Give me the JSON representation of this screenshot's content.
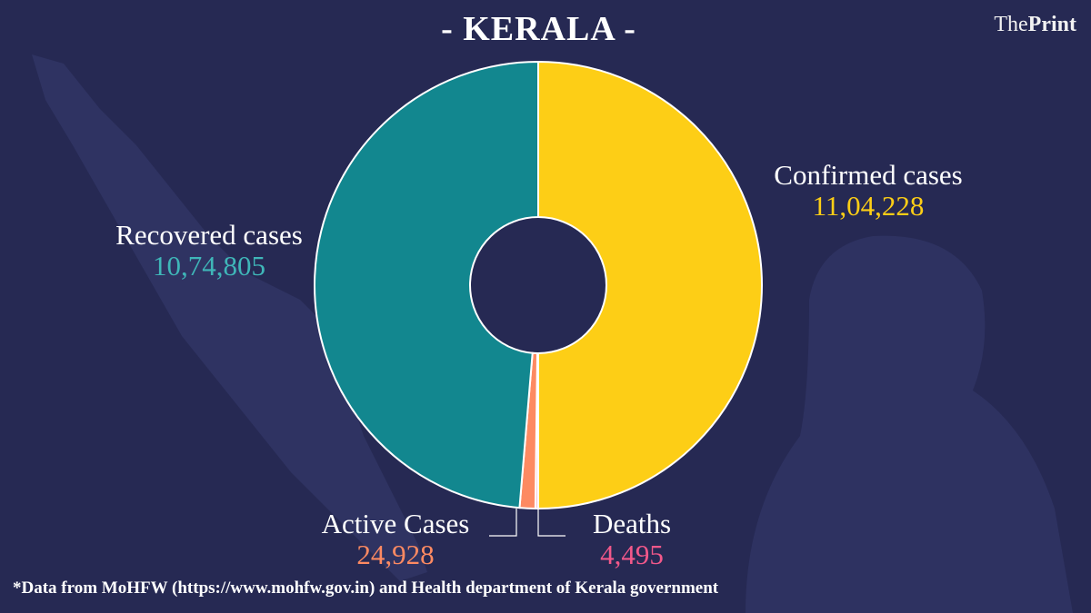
{
  "title": "- KERALA -",
  "logo": {
    "prefix": "The",
    "bold": "Print"
  },
  "footer": "*Data from MoHFW (https://www.mohfw.gov.in) and Health department of Kerala government",
  "chart_data": {
    "type": "pie",
    "donut": true,
    "title": "- KERALA -",
    "slices": [
      {
        "label": "Confirmed cases",
        "value": 1104228,
        "display": "11,04,228",
        "color": "#fdce16",
        "label_color": "#fdce16"
      },
      {
        "label": "Deaths",
        "value": 4495,
        "display": "4,495",
        "color": "#f7c6d6",
        "label_color": "#f2588a"
      },
      {
        "label": "Active Cases",
        "value": 24928,
        "display": "24,928",
        "color": "#fd8a62",
        "label_color": "#fd8a62"
      },
      {
        "label": "Recovered cases",
        "value": 1074805,
        "display": "10,74,805",
        "color": "#12878f",
        "label_color": "#3fb6b8"
      }
    ]
  }
}
